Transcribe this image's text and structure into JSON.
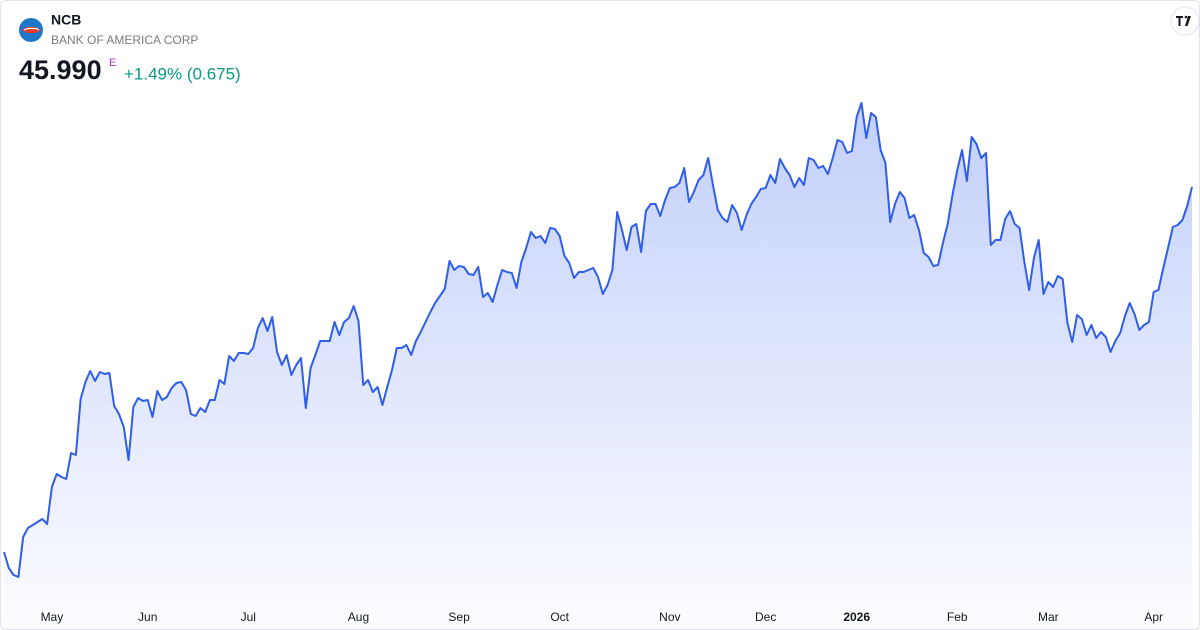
{
  "header": {
    "symbol": "NCB",
    "name": "BANK OF AMERICA CORP",
    "price": "45.990",
    "badge": "E",
    "change": "+1.49% (0.675)"
  },
  "chart_data": {
    "type": "area",
    "color": "#2f5ee8",
    "values": [
      35.04,
      34.56,
      34.35,
      34.29,
      35.49,
      35.76,
      35.85,
      35.94,
      36.03,
      35.88,
      36.99,
      37.38,
      37.29,
      37.23,
      38.01,
      37.95,
      39.63,
      40.14,
      40.47,
      40.17,
      40.44,
      40.38,
      40.41,
      39.42,
      39.18,
      38.79,
      37.8,
      39.39,
      39.66,
      39.57,
      39.6,
      39.09,
      39.87,
      39.6,
      39.69,
      39.96,
      40.11,
      40.14,
      39.9,
      39.18,
      39.12,
      39.36,
      39.24,
      39.6,
      39.6,
      40.2,
      40.08,
      40.92,
      40.77,
      41.01,
      41.01,
      40.98,
      41.16,
      41.76,
      42.06,
      41.67,
      42.09,
      41.04,
      40.65,
      40.95,
      40.35,
      40.65,
      40.86,
      39.36,
      40.56,
      40.95,
      41.37,
      41.37,
      41.37,
      41.94,
      41.55,
      41.94,
      42.06,
      42.42,
      41.97,
      40.05,
      40.2,
      39.84,
      39.99,
      39.45,
      39.99,
      40.5,
      41.16,
      41.16,
      41.25,
      40.95,
      41.37,
      41.64,
      41.94,
      42.24,
      42.51,
      42.72,
      42.93,
      43.77,
      43.5,
      43.62,
      43.59,
      43.38,
      43.35,
      43.59,
      42.69,
      42.81,
      42.54,
      43.05,
      43.5,
      43.44,
      43.41,
      42.96,
      43.74,
      44.16,
      44.64,
      44.46,
      44.52,
      44.31,
      44.76,
      44.73,
      44.52,
      43.92,
      43.71,
      43.26,
      43.44,
      43.44,
      43.5,
      43.56,
      43.29,
      42.78,
      43.05,
      43.5,
      45.24,
      44.7,
      44.1,
      44.79,
      44.88,
      44.04,
      45.27,
      45.48,
      45.48,
      45.12,
      45.6,
      45.96,
      45.99,
      46.11,
      46.56,
      45.54,
      45.84,
      46.2,
      46.35,
      46.86,
      46.05,
      45.3,
      45.06,
      44.94,
      45.45,
      45.21,
      44.7,
      45.15,
      45.48,
      45.69,
      45.93,
      45.96,
      46.35,
      46.11,
      46.83,
      46.56,
      46.35,
      45.99,
      46.26,
      46.05,
      46.86,
      46.8,
      46.56,
      46.62,
      46.38,
      46.86,
      47.4,
      47.34,
      47.01,
      47.07,
      48.09,
      48.51,
      47.46,
      48.21,
      48.09,
      47.1,
      46.71,
      44.94,
      45.48,
      45.84,
      45.66,
      45.06,
      45.15,
      44.7,
      44.01,
      43.89,
      43.62,
      43.65,
      44.31,
      44.88,
      45.75,
      46.5,
      47.1,
      46.17,
      47.49,
      47.28,
      46.86,
      47.01,
      44.25,
      44.4,
      44.4,
      45.03,
      45.27,
      44.88,
      44.76,
      43.74,
      42.9,
      43.86,
      44.4,
      42.78,
      43.14,
      42.99,
      43.32,
      43.23,
      41.91,
      41.34,
      42.15,
      42.03,
      41.55,
      41.85,
      41.46,
      41.64,
      41.49,
      41.04,
      41.37,
      41.61,
      42.12,
      42.51,
      42.18,
      41.7,
      41.85,
      41.94,
      42.84,
      42.9,
      43.56,
      44.16,
      44.79,
      44.85,
      45.0,
      45.42,
      45.99
    ],
    "xticks": [
      {
        "value": 10,
        "label": "May"
      },
      {
        "value": 30,
        "label": "Jun"
      },
      {
        "value": 51,
        "label": "Jul"
      },
      {
        "value": 74,
        "label": "Aug"
      },
      {
        "value": 95,
        "label": "Sep"
      },
      {
        "value": 116,
        "label": "Oct"
      },
      {
        "value": 139,
        "label": "Nov"
      },
      {
        "value": 159,
        "label": "Dec"
      },
      {
        "value": 178,
        "label": "2026"
      },
      {
        "value": 199,
        "label": "Feb"
      },
      {
        "value": 218,
        "label": "Mar"
      },
      {
        "value": 240,
        "label": "Apr"
      }
    ]
  }
}
